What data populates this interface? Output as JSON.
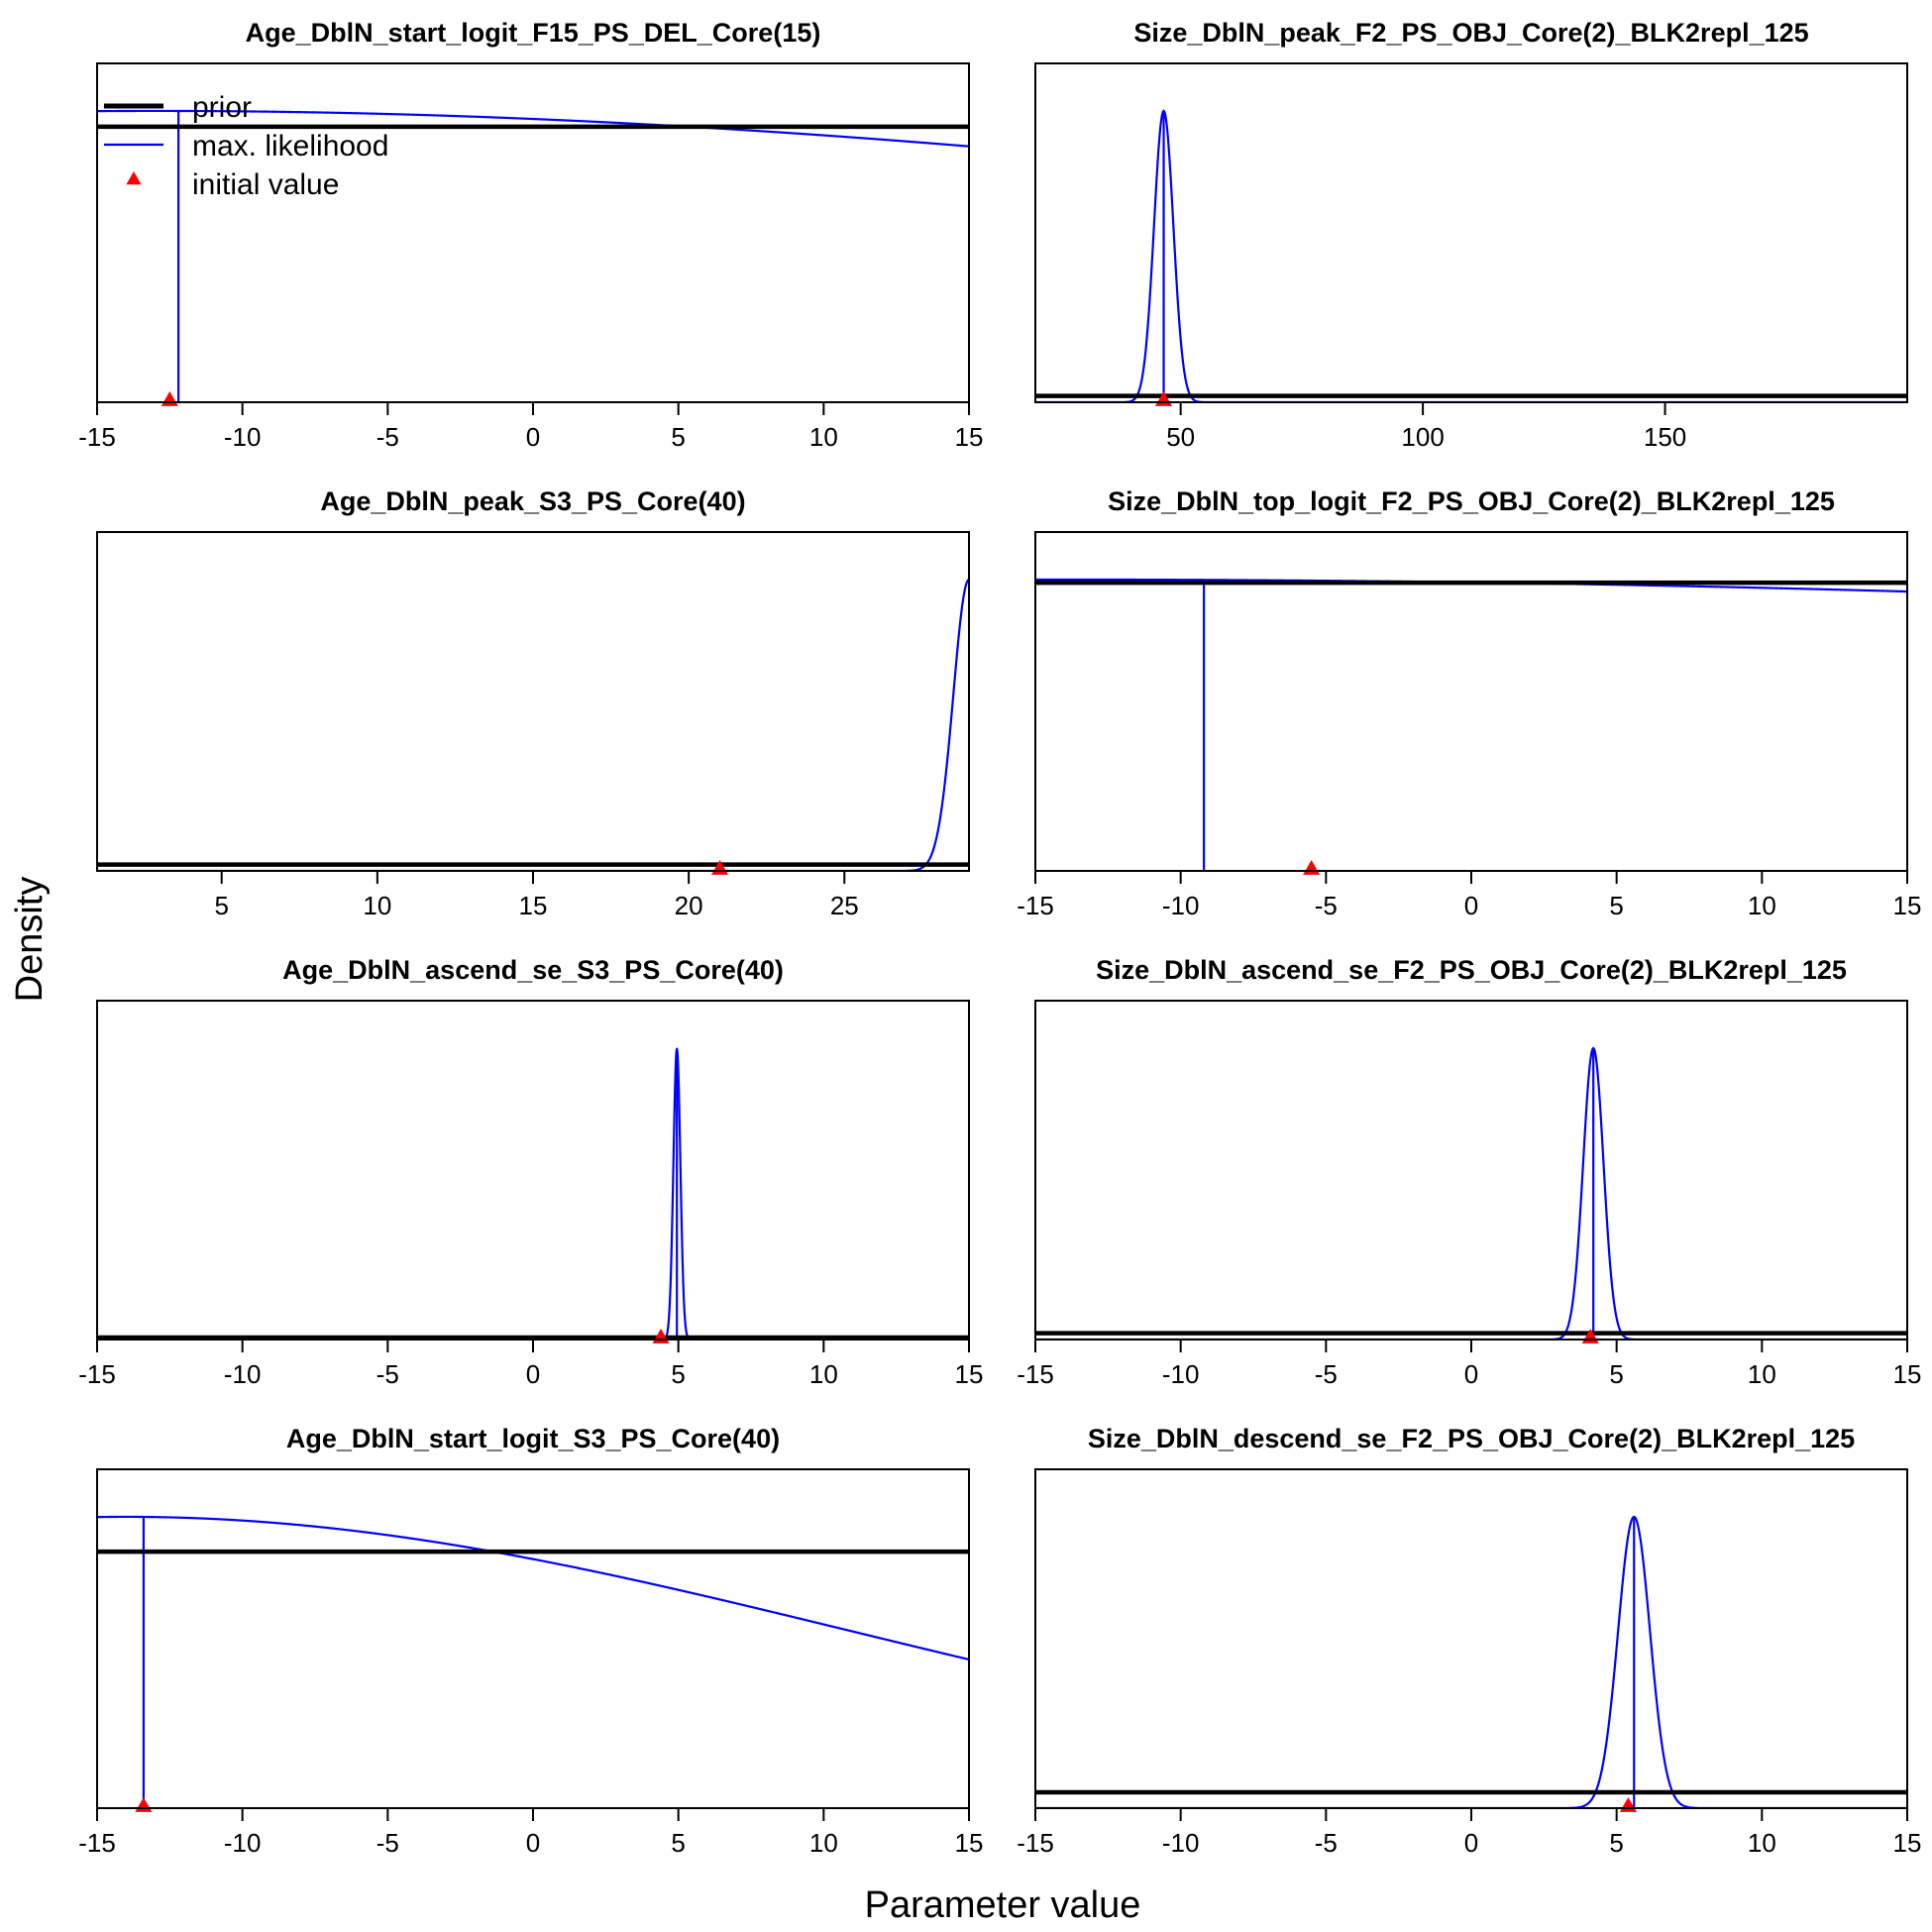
{
  "figure": {
    "xlabel": "Parameter value",
    "ylabel": "Density",
    "legend": {
      "placement": "top-left of first panel",
      "items": [
        {
          "label": "prior",
          "kind": "line",
          "color": "#000000"
        },
        {
          "label": "max. likelihood",
          "kind": "line",
          "color": "#0000ff"
        },
        {
          "label": "initial value",
          "kind": "triangle",
          "color": "#ff0000"
        }
      ]
    },
    "colors": {
      "prior": "#000000",
      "likelihood": "#0000ff",
      "initial": "#ff0000"
    }
  },
  "chart_data": [
    {
      "type": "line",
      "title": "Age_DblN_start_logit_F15_PS_DEL_Core(15)",
      "xlim": [
        -15,
        15
      ],
      "xticks": [
        -15,
        -10,
        -5,
        0,
        5,
        10,
        15
      ],
      "ylim": [
        0,
        1.07
      ],
      "prior": {
        "shape": "flat",
        "level": 0.87
      },
      "likelihood": {
        "shape": "normal",
        "mu": -13,
        "sigma": 55,
        "peak": 0.92
      },
      "mle": -12.2,
      "initial": -12.5
    },
    {
      "type": "line",
      "title": "Size_DblN_peak_F2_PS_OBJ_Core(2)_BLK2repl_125",
      "xlim": [
        20,
        200
      ],
      "xticks": [
        50,
        100,
        150
      ],
      "ylim": [
        0,
        1.07
      ],
      "prior": {
        "shape": "flat",
        "level": 0.02
      },
      "likelihood": {
        "shape": "normal",
        "mu": 46.5,
        "sigma": 2.0,
        "peak": 0.92
      },
      "mle": 46.5,
      "initial": 46.5
    },
    {
      "type": "line",
      "title": "Age_DblN_peak_S3_PS_Core(40)",
      "xlim": [
        1,
        29
      ],
      "xticks": [
        5,
        10,
        15,
        20,
        25
      ],
      "ylim": [
        0,
        1.07
      ],
      "prior": {
        "shape": "flat",
        "level": 0.02
      },
      "likelihood": {
        "shape": "normal",
        "mu": 29.0,
        "sigma": 0.5,
        "peak": 0.92
      },
      "mle": null,
      "initial": 21
    },
    {
      "type": "line",
      "title": "Size_DblN_top_logit_F2_PS_OBJ_Core(2)_BLK2repl_125",
      "xlim": [
        -15,
        15
      ],
      "xticks": [
        -15,
        -10,
        -5,
        0,
        5,
        10,
        15
      ],
      "ylim": [
        0,
        1.07
      ],
      "prior": {
        "shape": "flat",
        "level": 0.91
      },
      "likelihood": {
        "shape": "normal",
        "mu": -14,
        "sigma": 100,
        "peak": 0.92
      },
      "mle": -9.2,
      "initial": -5.5
    },
    {
      "type": "line",
      "title": "Age_DblN_ascend_se_S3_PS_Core(40)",
      "xlim": [
        -15,
        15
      ],
      "xticks": [
        -15,
        -10,
        -5,
        0,
        5,
        10,
        15
      ],
      "ylim": [
        0,
        1.07
      ],
      "prior": {
        "shape": "flat",
        "level": 0.0
      },
      "likelihood": {
        "shape": "normal",
        "mu": 4.95,
        "sigma": 0.12,
        "peak": 0.92
      },
      "mle": 4.95,
      "initial": 4.4
    },
    {
      "type": "line",
      "title": "Size_DblN_ascend_se_F2_PS_OBJ_Core(2)_BLK2repl_125",
      "xlim": [
        -15,
        15
      ],
      "xticks": [
        -15,
        -10,
        -5,
        0,
        5,
        10,
        15
      ],
      "ylim": [
        0,
        1.07
      ],
      "prior": {
        "shape": "flat",
        "level": 0.02
      },
      "likelihood": {
        "shape": "normal",
        "mu": 4.2,
        "sigma": 0.35,
        "peak": 0.92
      },
      "mle": 4.2,
      "initial": 4.1
    },
    {
      "type": "line",
      "title": "Age_DblN_start_logit_S3_PS_Core(40)",
      "xlim": [
        -15,
        15
      ],
      "xticks": [
        -15,
        -10,
        -5,
        0,
        5,
        10,
        15
      ],
      "ylim": [
        0,
        1.07
      ],
      "prior": {
        "shape": "flat",
        "level": 0.81
      },
      "likelihood": {
        "shape": "normal",
        "mu": -14,
        "sigma": 25,
        "peak": 0.92
      },
      "mle": -13.4,
      "initial": -13.4
    },
    {
      "type": "line",
      "title": "Size_DblN_descend_se_F2_PS_OBJ_Core(2)_BLK2repl_125",
      "xlim": [
        -15,
        15
      ],
      "xticks": [
        -15,
        -10,
        -5,
        0,
        5,
        10,
        15
      ],
      "ylim": [
        0,
        1.07
      ],
      "prior": {
        "shape": "flat",
        "level": 0.05
      },
      "likelihood": {
        "shape": "normal",
        "mu": 5.6,
        "sigma": 0.55,
        "peak": 0.92
      },
      "mle": 5.6,
      "initial": 5.4
    }
  ]
}
